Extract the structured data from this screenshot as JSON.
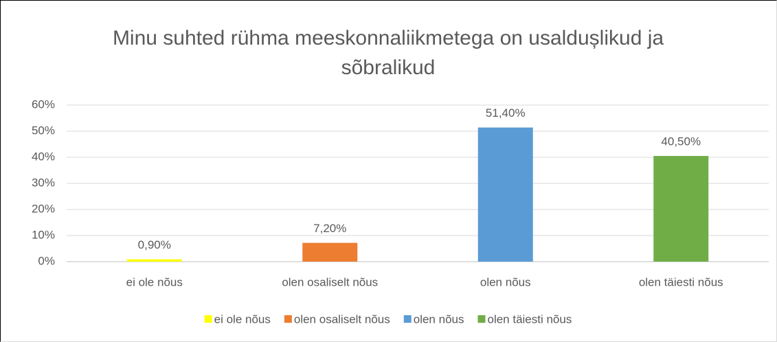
{
  "chart_data": {
    "type": "bar",
    "title": "Minu suhted rühma meeskonnaliikmetega on usaldușlikud ja sõbralikud",
    "categories": [
      "ei ole nõus",
      "olen osaliselt nõus",
      "olen nõus",
      "olen täiesti nõus"
    ],
    "values": [
      0.9,
      7.2,
      51.4,
      40.5
    ],
    "value_labels": [
      "0,90%",
      "7,20%",
      "51,40%",
      "40,50%"
    ],
    "colors": [
      "#ffff00",
      "#ed7d31",
      "#5b9bd5",
      "#70ad47"
    ],
    "ylim": [
      0,
      60
    ],
    "yticks": [
      {
        "value": 0,
        "label": "0%"
      },
      {
        "value": 10,
        "label": "10%"
      },
      {
        "value": 20,
        "label": "20%"
      },
      {
        "value": 30,
        "label": "30%"
      },
      {
        "value": 40,
        "label": "40%"
      },
      {
        "value": 50,
        "label": "50%"
      },
      {
        "value": 60,
        "label": "60%"
      }
    ],
    "grid": true,
    "legend": "bottom"
  }
}
